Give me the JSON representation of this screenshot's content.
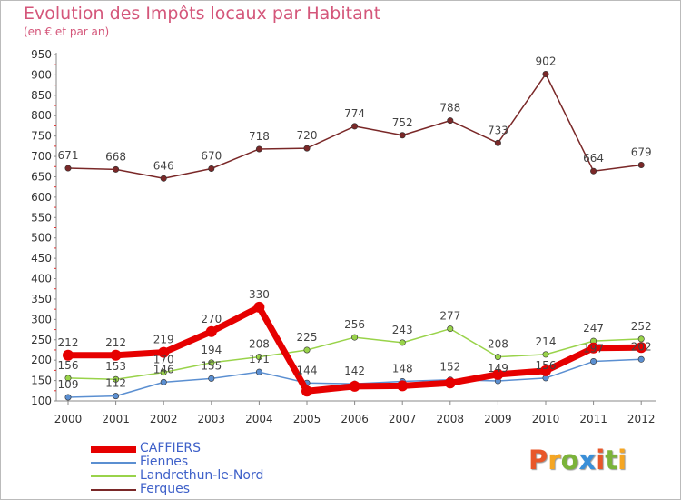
{
  "header": {
    "title": "Evolution des Impôts locaux par Habitant",
    "subtitle": "(en € et par an)"
  },
  "logo": {
    "letters": [
      "P",
      "r",
      "o",
      "x",
      "i",
      "t",
      "i"
    ],
    "colors": [
      "#e8572a",
      "#f5a623",
      "#7bb33a",
      "#3a8fd8",
      "#e8572a",
      "#7bb33a",
      "#f5a623"
    ]
  },
  "chart_data": {
    "type": "line",
    "title": "Evolution des Impôts locaux par Habitant",
    "subtitle": "(en € et par an)",
    "xlabel": "",
    "ylabel": "",
    "ylim": [
      100,
      950
    ],
    "yticks": [
      100,
      150,
      200,
      250,
      300,
      350,
      400,
      450,
      500,
      550,
      600,
      650,
      700,
      750,
      800,
      850,
      900,
      950
    ],
    "grid": false,
    "legend": "bottom-left",
    "categories": [
      "2000",
      "2001",
      "2002",
      "2003",
      "2004",
      "2005",
      "2006",
      "2007",
      "2008",
      "2009",
      "2010",
      "2011",
      "2012"
    ],
    "series": [
      {
        "name": "CAFFIERS",
        "color": "#e60000",
        "values": [
          212,
          212,
          219,
          270,
          330,
          124,
          136,
          137,
          144,
          165,
          174,
          230,
          231
        ],
        "show_labels": [
          true,
          true,
          true,
          true,
          true,
          false,
          false,
          false,
          false,
          false,
          false,
          false,
          false
        ],
        "thick": true
      },
      {
        "name": "Fiennes",
        "color": "#5b8fd1",
        "values": [
          109,
          112,
          146,
          155,
          171,
          144,
          142,
          148,
          152,
          149,
          156,
          197,
          202
        ],
        "show_labels": [
          true,
          true,
          true,
          true,
          true,
          true,
          true,
          true,
          true,
          true,
          true,
          true,
          true
        ],
        "thick": false
      },
      {
        "name": "Landrethun-le-Nord",
        "color": "#99d34a",
        "values": [
          156,
          153,
          170,
          194,
          208,
          225,
          256,
          243,
          277,
          208,
          214,
          247,
          252
        ],
        "show_labels": [
          true,
          true,
          true,
          true,
          true,
          true,
          true,
          true,
          true,
          true,
          true,
          true,
          true
        ],
        "thick": false
      },
      {
        "name": "Ferques",
        "color": "#7a2828",
        "values": [
          671,
          668,
          646,
          670,
          718,
          720,
          774,
          752,
          788,
          733,
          902,
          664,
          679
        ],
        "show_labels": [
          true,
          true,
          true,
          true,
          true,
          true,
          true,
          true,
          true,
          true,
          true,
          true,
          true
        ],
        "thick": false
      }
    ]
  }
}
